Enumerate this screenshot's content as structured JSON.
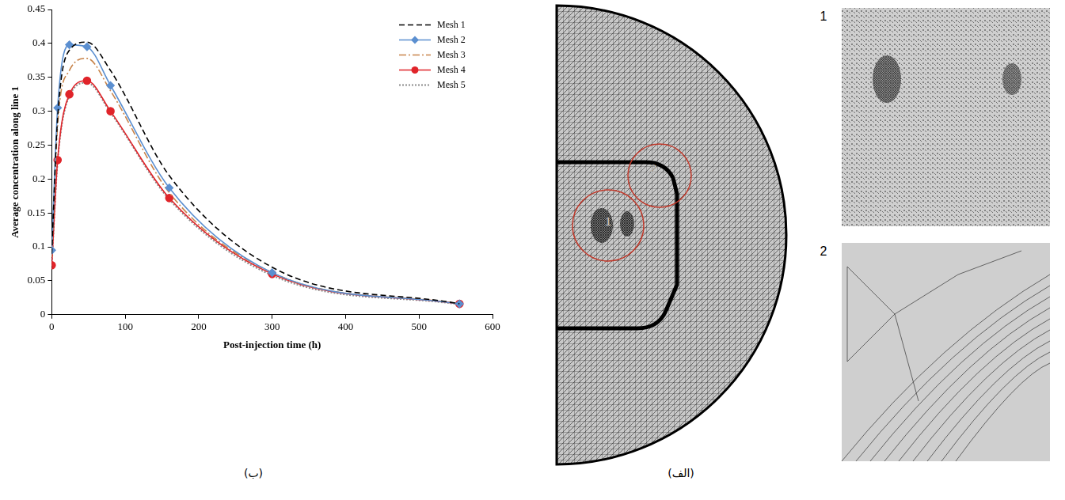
{
  "chart_data": {
    "type": "line",
    "x_label": "Post-injection time (h)",
    "y_label": "Average concentration along line 1",
    "x": [
      0,
      8,
      24,
      48,
      80,
      160,
      300,
      555
    ],
    "series": [
      {
        "name": "Mesh 1",
        "color": "#000000",
        "line_style": "dashed",
        "marker": "none",
        "values": [
          0.09,
          0.29,
          0.39,
          0.402,
          0.36,
          0.205,
          0.07,
          0.016
        ]
      },
      {
        "name": "Mesh 2",
        "color": "#5b8fd0",
        "line_style": "solid",
        "marker": "diamond",
        "values": [
          0.095,
          0.305,
          0.398,
          0.395,
          0.338,
          0.187,
          0.062,
          0.016
        ]
      },
      {
        "name": "Mesh 3",
        "color": "#c8844a",
        "line_style": "dash_dot",
        "marker": "none",
        "values": [
          0.085,
          0.28,
          0.36,
          0.378,
          0.33,
          0.18,
          0.062,
          0.016
        ]
      },
      {
        "name": "Mesh 4",
        "color": "#e0242a",
        "line_style": "solid",
        "marker": "circle",
        "values": [
          0.073,
          0.228,
          0.325,
          0.345,
          0.3,
          0.172,
          0.06,
          0.016
        ]
      },
      {
        "name": "Mesh 5",
        "color": "#8c8c8c",
        "line_style": "dotted",
        "marker": "none",
        "values": [
          0.072,
          0.225,
          0.322,
          0.342,
          0.298,
          0.17,
          0.058,
          0.015
        ]
      }
    ],
    "xlim": [
      0,
      600
    ],
    "xticks": [
      0,
      100,
      200,
      300,
      400,
      500,
      600
    ],
    "ylim": [
      0,
      0.45
    ],
    "yticks": [
      0,
      0.05,
      0.1,
      0.15,
      0.2,
      0.25,
      0.3,
      0.35,
      0.4,
      0.45
    ],
    "grid": false,
    "legend": "upper right"
  },
  "chart_panel_label": "(ب)",
  "mesh_panel": {
    "label": "(الف)",
    "callouts": [
      "1",
      "2"
    ],
    "insets": [
      "1",
      "2"
    ]
  }
}
